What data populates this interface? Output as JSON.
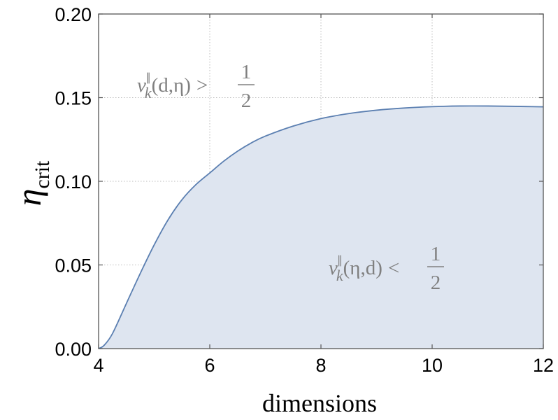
{
  "chart_data": {
    "type": "area",
    "xlabel": "dimensions",
    "ylabel": {
      "base": "η",
      "sub": "crit"
    },
    "xlim": [
      4,
      12
    ],
    "ylim": [
      0,
      0.2
    ],
    "xticks": [
      4,
      6,
      8,
      10,
      12
    ],
    "xtick_labels": [
      "4",
      "6",
      "8",
      "10",
      "12"
    ],
    "yticks": [
      0,
      0.05,
      0.1,
      0.15,
      0.2
    ],
    "ytick_labels": [
      "0.00",
      "0.05",
      "0.10",
      "0.15",
      "0.20"
    ],
    "grid": true,
    "series": [
      {
        "x": [
          4.0,
          4.1,
          4.25,
          4.5,
          4.75,
          5.0,
          5.25,
          5.5,
          5.75,
          6.0,
          6.25,
          6.5,
          6.75,
          7.0,
          7.5,
          8.0,
          8.5,
          9.0,
          9.5,
          10.0,
          10.5,
          11.0,
          11.5,
          12.0
        ],
        "y": [
          0.0,
          0.002,
          0.009,
          0.027,
          0.045,
          0.062,
          0.077,
          0.089,
          0.098,
          0.105,
          0.112,
          0.118,
          0.123,
          0.127,
          0.133,
          0.1375,
          0.1405,
          0.1425,
          0.1438,
          0.1446,
          0.145,
          0.145,
          0.1448,
          0.1445
        ],
        "color": "#5b7fb1",
        "fill": "#dee5f0"
      }
    ],
    "annotations": [
      {
        "nu": "ν",
        "sup": "∥",
        "sub": "k",
        "args": "(d,η)",
        "op": ">",
        "num": "1",
        "den": "2"
      },
      {
        "nu": "ν",
        "sup": "∥",
        "sub": "k",
        "args": "(η,d)",
        "op": "<",
        "num": "1",
        "den": "2"
      }
    ]
  }
}
